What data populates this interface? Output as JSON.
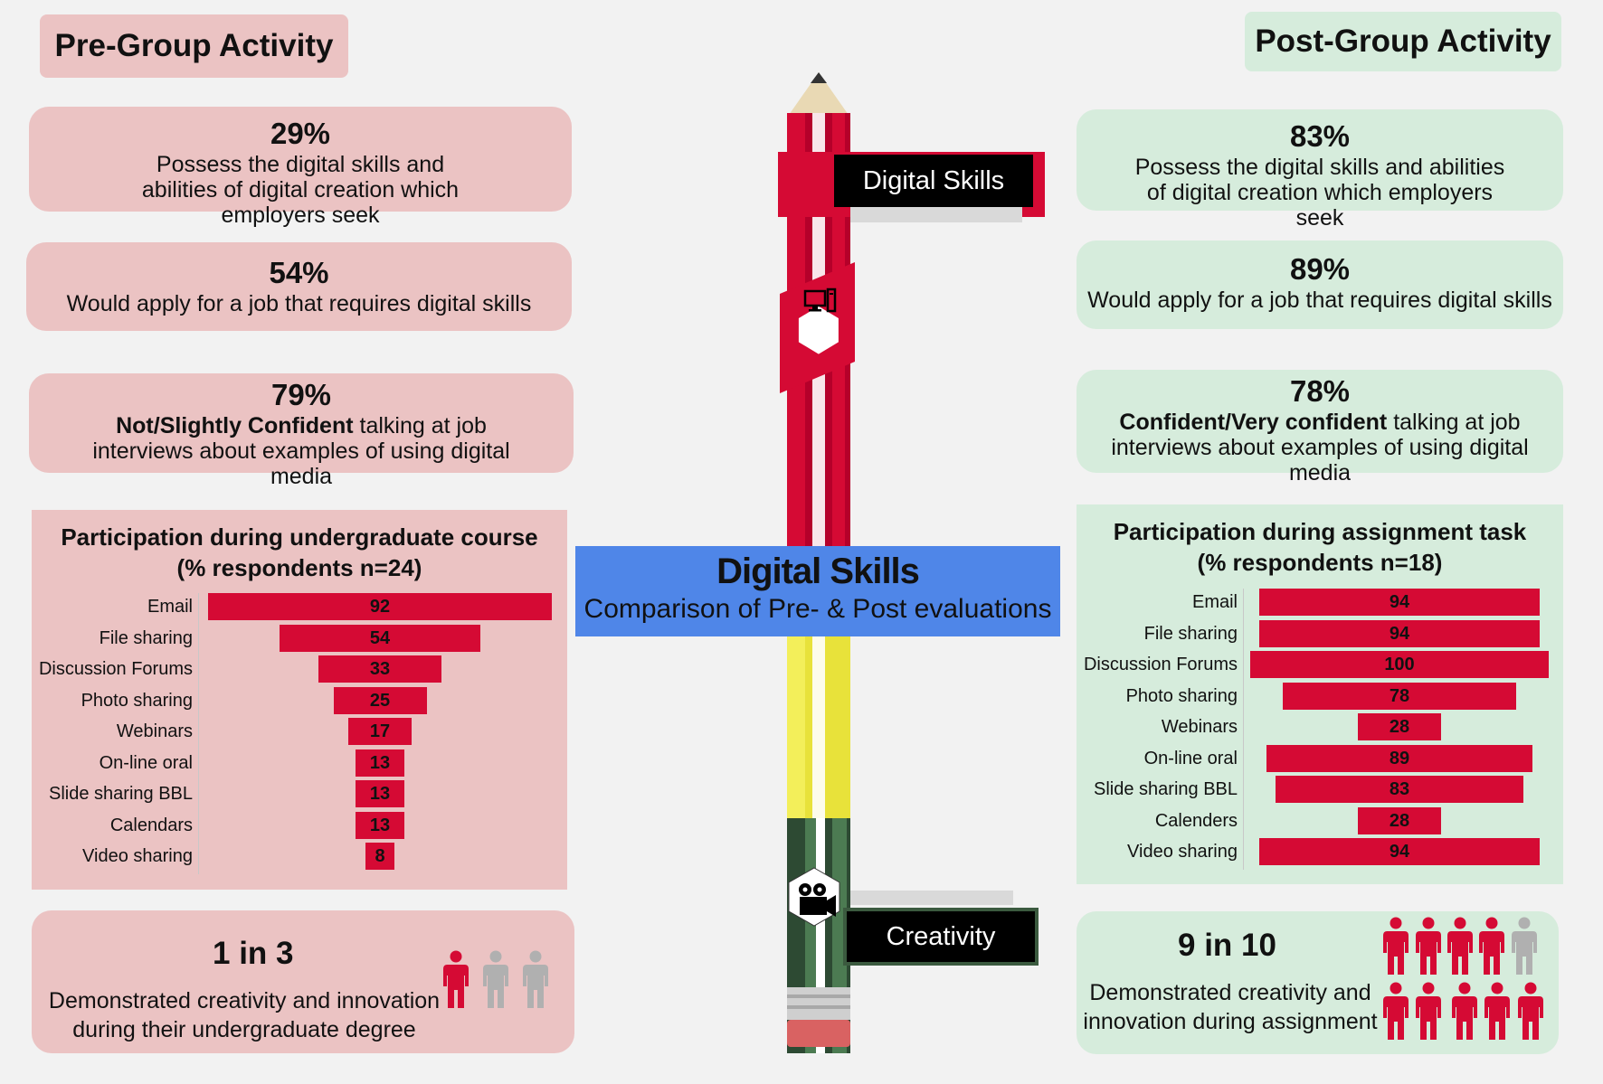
{
  "pre": {
    "header": "Pre-Group Activity",
    "stats": [
      {
        "value": "29%",
        "text_plain": "Possess the digital skills and abilities of digital creation which employers seek"
      },
      {
        "value": "54%",
        "text_plain": "Would apply for a job that requires digital skills"
      },
      {
        "value": "79%",
        "bold": "Not/Slightly Confident",
        "rest": " talking at job interviews about examples of using digital media"
      }
    ],
    "creativity": {
      "ratio": "1 in 3",
      "text": "Demonstrated creativity and innovation during their undergraduate degree",
      "people_total": 3,
      "people_highlighted": 1
    }
  },
  "post": {
    "header": "Post-Group Activity",
    "stats": [
      {
        "value": "83%",
        "text_plain": "Possess the digital skills and abilities of digital creation which employers seek"
      },
      {
        "value": "89%",
        "text_plain": "Would apply for a job that requires digital skills"
      },
      {
        "value": "78%",
        "bold": "Confident/Very confident",
        "rest": " talking at job interviews about examples of using digital media"
      }
    ],
    "creativity": {
      "ratio": "9 in 10",
      "text": "Demonstrated creativity and innovation during assignment",
      "people_total": 10,
      "people_highlighted": 9
    }
  },
  "center": {
    "title": "Digital Skills",
    "subtitle": "Comparison of Pre- & Post evaluations",
    "sign_top": "Digital Skills",
    "sign_bottom": "Creativity"
  },
  "colors": {
    "bar": "#d50a34",
    "pink": "#ebc3c3",
    "green": "#d6ecdc",
    "blue": "#4f86e8",
    "person_highlight": "#d50a34",
    "person_grey": "#b0b0b0"
  },
  "icons": [
    "computer-icon",
    "film-camera-icon",
    "person-icon",
    "pencil-graphic"
  ],
  "chart_data": [
    {
      "type": "bar",
      "orientation": "horizontal-centered (funnel)",
      "title": "Participation during undergraduate course",
      "subtitle": "(% respondents n=24)",
      "categories": [
        "Email",
        "File sharing",
        "Discussion Forums",
        "Photo sharing",
        "Webinars",
        "On-line oral",
        "Slide sharing BBL",
        "Calendars",
        "Video sharing"
      ],
      "values": [
        92,
        54,
        33,
        25,
        17,
        13,
        13,
        13,
        8
      ],
      "max": 100
    },
    {
      "type": "bar",
      "orientation": "horizontal-centered (funnel)",
      "title": "Participation during assignment task",
      "subtitle": "(% respondents n=18)",
      "categories": [
        "Email",
        "File sharing",
        "Discussion Forums",
        "Photo sharing",
        "Webinars",
        "On-line oral",
        "Slide sharing BBL",
        "Calenders",
        "Video sharing"
      ],
      "values": [
        94,
        94,
        100,
        78,
        28,
        89,
        83,
        28,
        94
      ],
      "max": 100
    }
  ]
}
